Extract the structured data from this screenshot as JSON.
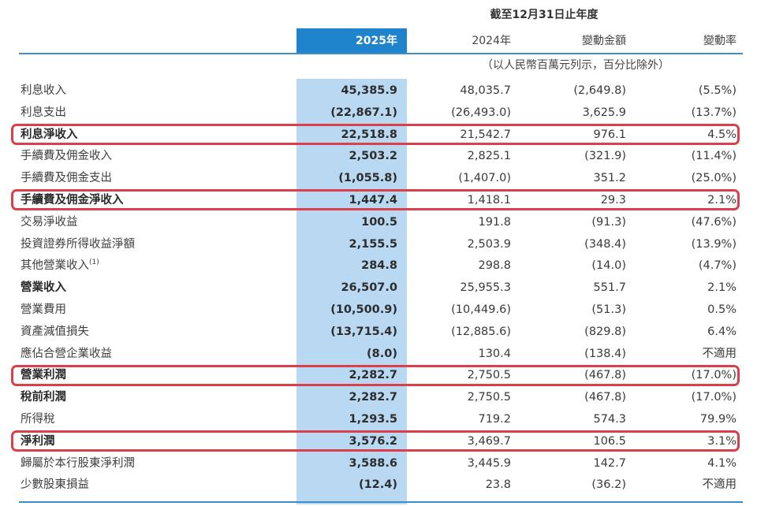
{
  "header": {
    "period": "截至12月31日止年度",
    "col_2025": "2025年",
    "col_2024": "2024年",
    "col_change": "變動金額",
    "col_rate": "變動率",
    "unit_note": "（以人民幣百萬元列示，百分比除外）"
  },
  "rows": [
    {
      "label": "利息收入",
      "v2025": "45,385.9",
      "v2024": "48,035.7",
      "change": "(2,649.8)",
      "rate": "(5.5%)"
    },
    {
      "label": "利息支出",
      "v2025": "(22,867.1)",
      "v2024": "(26,493.0)",
      "change": "3,625.9",
      "rate": "(13.7%)"
    },
    {
      "label": "利息淨收入",
      "v2025": "22,518.8",
      "v2024": "21,542.7",
      "change": "976.1",
      "rate": "4.5%"
    },
    {
      "label": "手續費及佣金收入",
      "v2025": "2,503.2",
      "v2024": "2,825.1",
      "change": "(321.9)",
      "rate": "(11.4%)"
    },
    {
      "label": "手續費及佣金支出",
      "v2025": "(1,055.8)",
      "v2024": "(1,407.0)",
      "change": "351.2",
      "rate": "(25.0%)"
    },
    {
      "label": "手續費及佣金淨收入",
      "v2025": "1,447.4",
      "v2024": "1,418.1",
      "change": "29.3",
      "rate": "2.1%"
    },
    {
      "label": "交易淨收益",
      "v2025": "100.5",
      "v2024": "191.8",
      "change": "(91.3)",
      "rate": "(47.6%)"
    },
    {
      "label": "投資證券所得收益淨額",
      "v2025": "2,155.5",
      "v2024": "2,503.9",
      "change": "(348.4)",
      "rate": "(13.9%)"
    },
    {
      "label": "其他營業收入",
      "sup": "(1)",
      "v2025": "284.8",
      "v2024": "298.8",
      "change": "(14.0)",
      "rate": "(4.7%)"
    },
    {
      "label": "營業收入",
      "v2025": "26,507.0",
      "v2024": "25,955.3",
      "change": "551.7",
      "rate": "2.1%"
    },
    {
      "label": "營業費用",
      "v2025": "(10,500.9)",
      "v2024": "(10,449.6)",
      "change": "(51.3)",
      "rate": "0.5%"
    },
    {
      "label": "資產減值損失",
      "v2025": "(13,715.4)",
      "v2024": "(12,885.6)",
      "change": "(829.8)",
      "rate": "6.4%"
    },
    {
      "label": "應佔合營企業收益",
      "v2025": "(8.0)",
      "v2024": "130.4",
      "change": "(138.4)",
      "rate": "不適用"
    },
    {
      "label": "營業利潤",
      "v2025": "2,282.7",
      "v2024": "2,750.5",
      "change": "(467.8)",
      "rate": "(17.0%)"
    },
    {
      "label": "稅前利潤",
      "v2025": "2,282.7",
      "v2024": "2,750.5",
      "change": "(467.8)",
      "rate": "(17.0%)"
    },
    {
      "label": "所得稅",
      "v2025": "1,293.5",
      "v2024": "719.2",
      "change": "574.3",
      "rate": "79.9%"
    },
    {
      "label": "淨利潤",
      "v2025": "3,576.2",
      "v2024": "3,469.7",
      "change": "106.5",
      "rate": "3.1%"
    },
    {
      "label": "歸屬於本行股東淨利潤",
      "v2025": "3,588.6",
      "v2024": "3,445.9",
      "change": "142.7",
      "rate": "4.1%"
    },
    {
      "label": "少數股東損益",
      "v2025": "(12.4)",
      "v2024": "23.8",
      "change": "(36.2)",
      "rate": "不適用"
    }
  ],
  "highlight_color": "#d9404a",
  "accent_color": "#1f84cc"
}
